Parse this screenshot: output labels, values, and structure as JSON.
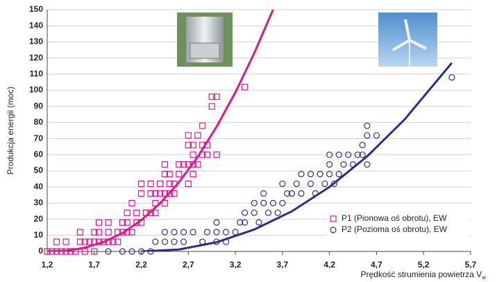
{
  "chart_data": {
    "type": "scatter",
    "y_label": "Produkcja energii (moc)",
    "x_label": "Prędkość strumienia powietrza V",
    "x_label_subscript": "w",
    "xlim": [
      1.2,
      5.7
    ],
    "ylim": [
      0,
      150
    ],
    "xticks": [
      {
        "value": 1.2,
        "label": "1,2"
      },
      {
        "value": 1.7,
        "label": "1,7"
      },
      {
        "value": 2.2,
        "label": "2,2"
      },
      {
        "value": 2.7,
        "label": "2,7"
      },
      {
        "value": 3.2,
        "label": "3,2"
      },
      {
        "value": 3.7,
        "label": "3,7"
      },
      {
        "value": 4.2,
        "label": "4,2"
      },
      {
        "value": 4.7,
        "label": "4,7"
      },
      {
        "value": 5.2,
        "label": "5,2"
      },
      {
        "value": 5.7,
        "label": "5,7"
      }
    ],
    "yticks": [
      0,
      10,
      20,
      30,
      40,
      50,
      60,
      70,
      80,
      90,
      100,
      110,
      120,
      130,
      140,
      150
    ],
    "grid": true,
    "legend": "bottom-right",
    "series": [
      {
        "name": "P1 (Pionowa oś obrotu), EW",
        "color": "#e0158b",
        "marker": "square",
        "x": [
          1.2,
          1.25,
          1.3,
          1.35,
          1.4,
          1.45,
          1.5,
          1.6,
          1.7,
          1.3,
          1.4,
          1.55,
          1.6,
          1.65,
          1.7,
          1.75,
          1.8,
          1.85,
          1.9,
          1.95,
          1.55,
          1.7,
          1.75,
          1.85,
          1.95,
          2.0,
          2.05,
          2.1,
          1.75,
          1.85,
          2.0,
          2.05,
          2.15,
          2.2,
          2.05,
          2.15,
          2.25,
          2.3,
          2.35,
          2.1,
          2.35,
          2.45,
          2.2,
          2.3,
          2.35,
          2.4,
          2.45,
          2.5,
          2.55,
          2.3,
          2.4,
          2.5,
          2.55,
          2.7,
          2.2,
          2.45,
          2.5,
          2.6,
          2.75,
          2.45,
          2.6,
          2.65,
          2.7,
          2.75,
          2.8,
          2.7,
          2.75,
          2.85,
          2.9,
          2.7,
          2.8,
          2.75,
          2.85,
          2.9,
          3.0,
          2.85,
          2.95,
          2.95,
          3.0,
          3.3
        ],
        "values": [
          0,
          0,
          0,
          0,
          0,
          0,
          0,
          0,
          0,
          6,
          6,
          6,
          6,
          6,
          6,
          6,
          6,
          6,
          6,
          6,
          12,
          12,
          12,
          12,
          12,
          12,
          12,
          12,
          18,
          18,
          18,
          18,
          18,
          18,
          24,
          24,
          24,
          24,
          24,
          30,
          30,
          30,
          36,
          36,
          36,
          36,
          36,
          36,
          36,
          42,
          42,
          42,
          42,
          42,
          42,
          48,
          48,
          48,
          48,
          54,
          54,
          54,
          54,
          54,
          54,
          66,
          60,
          60,
          60,
          72,
          72,
          66,
          66,
          66,
          60,
          78,
          90,
          96,
          96,
          102
        ]
      },
      {
        "name": "P2 (Pozioma oś obrotu), EW",
        "color": "#2e2a8c",
        "marker": "circle",
        "x": [
          1.85,
          2.0,
          2.1,
          2.2,
          2.3,
          2.35,
          2.45,
          2.55,
          2.65,
          2.45,
          2.55,
          2.65,
          2.75,
          2.85,
          2.9,
          3.0,
          3.0,
          3.1,
          3.1,
          3.0,
          3.2,
          3.25,
          3.3,
          3.3,
          3.4,
          3.4,
          3.45,
          3.5,
          3.55,
          3.5,
          3.6,
          3.65,
          3.7,
          3.75,
          3.7,
          3.8,
          3.85,
          3.9,
          3.9,
          4.0,
          4.0,
          4.05,
          4.1,
          4.15,
          4.2,
          4.2,
          4.25,
          4.2,
          4.3,
          4.3,
          4.35,
          4.4,
          4.45,
          4.5,
          4.55,
          4.55,
          4.6,
          4.6,
          4.6,
          4.7,
          5.5
        ],
        "values": [
          0,
          0,
          0,
          0,
          0,
          6,
          6,
          6,
          6,
          12,
          12,
          12,
          12,
          6,
          12,
          12,
          6,
          6,
          12,
          18,
          12,
          18,
          18,
          24,
          24,
          30,
          18,
          30,
          24,
          36,
          30,
          24,
          30,
          36,
          42,
          36,
          42,
          36,
          48,
          42,
          48,
          36,
          48,
          42,
          48,
          54,
          42,
          60,
          48,
          60,
          54,
          60,
          54,
          60,
          60,
          66,
          54,
          72,
          78,
          72,
          108
        ]
      }
    ],
    "curves": [
      {
        "color": "#e0158b",
        "x": [
          1.2,
          1.4,
          1.6,
          1.8,
          2.0,
          2.2,
          2.4,
          2.6,
          2.8,
          3.0,
          3.2,
          3.4,
          3.6
        ],
        "values": [
          0,
          0.4,
          2.3,
          5.9,
          11.4,
          19.4,
          29.9,
          42.9,
          58.7,
          77.4,
          98.7,
          123,
          150
        ]
      },
      {
        "color": "#2e2a8c",
        "x": [
          2.2,
          2.6,
          3.0,
          3.4,
          3.8,
          4.2,
          4.6,
          5.0,
          5.5
        ],
        "values": [
          0,
          1.2,
          5.7,
          13.6,
          24.9,
          40,
          59,
          82,
          117
        ]
      }
    ]
  }
}
